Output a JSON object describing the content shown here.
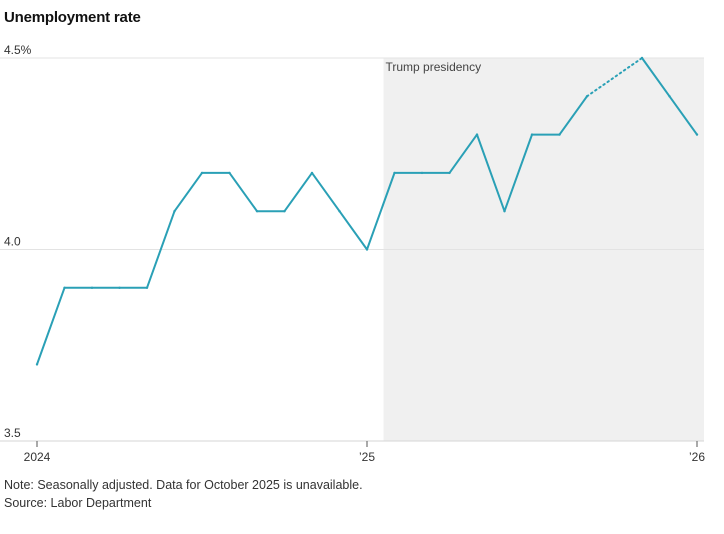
{
  "header": {
    "title": "Unemployment rate"
  },
  "chart_data": {
    "type": "line",
    "title": "Unemployment rate",
    "xlabel": "",
    "ylabel": "",
    "ylim": [
      3.5,
      4.5
    ],
    "y_ticks": [
      {
        "value": 3.5,
        "label": "3.5"
      },
      {
        "value": 4.0,
        "label": "4.0"
      },
      {
        "value": 4.5,
        "label": "4.5%"
      }
    ],
    "x_ticks": [
      {
        "index": 0,
        "label": "2024"
      },
      {
        "index": 12,
        "label": "’25"
      },
      {
        "index": 24,
        "label": "’26"
      }
    ],
    "x_range": [
      0,
      24
    ],
    "grid": true,
    "series": [
      {
        "name": "Unemployment rate",
        "color": "#2aa0b6",
        "x": [
          0,
          1,
          2,
          3,
          4,
          5,
          6,
          7,
          8,
          9,
          10,
          11,
          12,
          13,
          14,
          15,
          16,
          17,
          18,
          19,
          20,
          21,
          22,
          23,
          24
        ],
        "values": [
          3.7,
          3.9,
          3.9,
          3.9,
          3.9,
          4.1,
          4.2,
          4.2,
          4.1,
          4.1,
          4.2,
          4.1,
          4.0,
          4.2,
          4.2,
          4.2,
          4.3,
          4.1,
          4.3,
          4.3,
          4.4,
          null,
          4.5,
          4.4,
          4.3
        ],
        "gap_style": "dotted"
      }
    ],
    "annotations": [
      {
        "type": "shaded_region",
        "label": "Trump presidency",
        "x_start": 12.6,
        "x_end": 24.3,
        "color": "#f0f0f0"
      }
    ]
  },
  "footer": {
    "note": "Note: Seasonally adjusted. Data for October 2025 is unavailable.",
    "source": "Source: Labor Department"
  }
}
